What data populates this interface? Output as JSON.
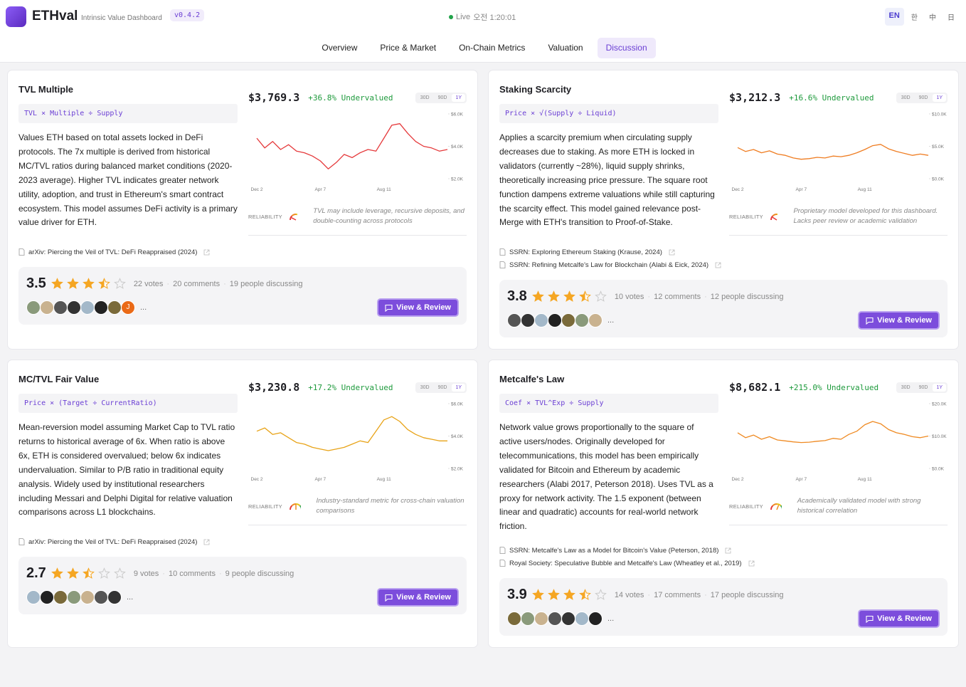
{
  "header": {
    "brand": "ETHval",
    "tagline": "Intrinsic Value Dashboard",
    "version": "v0.4.2",
    "status": "Live",
    "time": "오전 1:20:01",
    "languages": [
      "EN",
      "한",
      "中",
      "日"
    ],
    "active_language": 0
  },
  "nav": {
    "tabs": [
      "Overview",
      "Price & Market",
      "On-Chain Metrics",
      "Valuation",
      "Discussion"
    ],
    "active_tab": 4
  },
  "labels": {
    "reliability": "RELIABILITY",
    "review_button": "View & Review",
    "more": "..."
  },
  "cards": [
    {
      "title": "TVL Multiple",
      "formula": "TVL × Multiple ÷ Supply",
      "price": "$3,769.3",
      "upside": "+36.8%",
      "verdict": "Undervalued",
      "ranges": [
        "30D",
        "90D",
        "1Y"
      ],
      "active_range": 2,
      "description": "Values ETH based on total assets locked in DeFi protocols. The 7x multiple is derived from historical MC/TVL ratios during balanced market conditions (2020-2023 average). Higher TVL indicates greater network utility, adoption, and trust in Ethereum's smart contract ecosystem. This model assumes DeFi activity is a primary value driver for ETH.",
      "chart": {
        "type": "line",
        "color": "#e5393b",
        "values": [
          4500,
          3900,
          4300,
          3800,
          4100,
          3700,
          3600,
          3400,
          3100,
          2600,
          3000,
          3500,
          3300,
          3600,
          3800,
          3700,
          4500,
          5300,
          5400,
          4800,
          4300,
          4000,
          3900,
          3700,
          3800
        ],
        "categories": [
          "Dec 2",
          null,
          null,
          null,
          null,
          null,
          null,
          null,
          "Apr 7",
          null,
          null,
          null,
          null,
          null,
          null,
          null,
          "Aug 11",
          null,
          null,
          null,
          null,
          null,
          null,
          null,
          null
        ],
        "ylim": [
          2000,
          6000
        ],
        "yticks": [
          {
            "value": 6000,
            "label": "$6.0K"
          },
          {
            "value": 4000,
            "label": "$4.0K"
          },
          {
            "value": 2000,
            "label": "$2.0K"
          }
        ]
      },
      "reliability_score": 15,
      "reliability_note": "TVL may include leverage, recursive deposits, and double-counting across protocols",
      "references": [
        "arXiv: Piercing the Veil of TVL: DeFi Reappraised (2024)"
      ],
      "rating": 3.5,
      "votes": "22 votes",
      "comments": "20 comments",
      "discussing": "19 people discussing",
      "avatar_letter": "J"
    },
    {
      "title": "Staking Scarcity",
      "formula": "Price × √(Supply ÷ Liquid)",
      "price": "$3,212.3",
      "upside": "+16.6%",
      "verdict": "Undervalued",
      "ranges": [
        "30D",
        "90D",
        "1Y"
      ],
      "active_range": 2,
      "description": "Applies a scarcity premium when circulating supply decreases due to staking. As more ETH is locked in validators (currently ~28%), liquid supply shrinks, theoretically increasing price pressure. The square root function dampens extreme valuations while still capturing the scarcity effect. This model gained relevance post-Merge with ETH's transition to Proof-of-Stake.",
      "chart": {
        "type": "line",
        "color": "#ef7d22",
        "values": [
          4800,
          4200,
          4500,
          4000,
          4300,
          3800,
          3600,
          3200,
          3000,
          3100,
          3300,
          3200,
          3500,
          3400,
          3600,
          4000,
          4500,
          5100,
          5300,
          4600,
          4200,
          3900,
          3600,
          3800,
          3600
        ],
        "categories": [
          "Dec 2",
          null,
          null,
          null,
          null,
          null,
          null,
          null,
          "Apr 7",
          null,
          null,
          null,
          null,
          null,
          null,
          null,
          "Aug 11",
          null,
          null,
          null,
          null,
          null,
          null,
          null,
          null
        ],
        "ylim": [
          0,
          10000
        ],
        "yticks": [
          {
            "value": 10000,
            "label": "$10.0K"
          },
          {
            "value": 5000,
            "label": "$5.0K"
          },
          {
            "value": 0,
            "label": "$0.0K"
          }
        ]
      },
      "reliability_score": 18,
      "reliability_note": "Proprietary model developed for this dashboard. Lacks peer review or academic validation",
      "references": [
        "SSRN: Exploring Ethereum Staking (Krause, 2024)",
        "SSRN: Refining Metcalfe's Law for Blockchain (Alabi & Eick, 2024)"
      ],
      "rating": 3.8,
      "votes": "10 votes",
      "comments": "12 comments",
      "discussing": "12 people discussing"
    },
    {
      "title": "MC/TVL Fair Value",
      "formula": "Price × (Target ÷ CurrentRatio)",
      "price": "$3,230.8",
      "upside": "+17.2%",
      "verdict": "Undervalued",
      "ranges": [
        "30D",
        "90D",
        "1Y"
      ],
      "active_range": 2,
      "description": "Mean-reversion model assuming Market Cap to TVL ratio returns to historical average of 6x. When ratio is above 6x, ETH is considered overvalued; below 6x indicates undervaluation. Similar to P/B ratio in traditional equity analysis. Widely used by institutional researchers including Messari and Delphi Digital for relative valuation comparisons across L1 blockchains.",
      "chart": {
        "type": "line",
        "color": "#e8a317",
        "values": [
          4300,
          4500,
          4100,
          4200,
          3900,
          3600,
          3500,
          3300,
          3200,
          3100,
          3200,
          3300,
          3500,
          3700,
          3600,
          4300,
          5000,
          5200,
          4900,
          4400,
          4100,
          3900,
          3800,
          3700,
          3700
        ],
        "categories": [
          "Dec 2",
          null,
          null,
          null,
          null,
          null,
          null,
          null,
          "Apr 7",
          null,
          null,
          null,
          null,
          null,
          null,
          null,
          "Aug 11",
          null,
          null,
          null,
          null,
          null,
          null,
          null,
          null
        ],
        "ylim": [
          2000,
          6000
        ],
        "yticks": [
          {
            "value": 6000,
            "label": "$6.0K"
          },
          {
            "value": 4000,
            "label": "$4.0K"
          },
          {
            "value": 2000,
            "label": "$2.0K"
          }
        ]
      },
      "reliability_score": 50,
      "reliability_note": "Industry-standard metric for cross-chain valuation comparisons",
      "references": [
        "arXiv: Piercing the Veil of TVL: DeFi Reappraised (2024)"
      ],
      "rating": 2.7,
      "votes": "9 votes",
      "comments": "10 comments",
      "discussing": "9 people discussing"
    },
    {
      "title": "Metcalfe's Law",
      "formula": "Coef × TVL^Exp ÷ Supply",
      "price": "$8,682.1",
      "upside": "+215.0%",
      "verdict": "Undervalued",
      "ranges": [
        "30D",
        "90D",
        "1Y"
      ],
      "active_range": 2,
      "description": "Network value grows proportionally to the square of active users/nodes. Originally developed for telecommunications, this model has been empirically validated for Bitcoin and Ethereum by academic researchers (Alabi 2017, Peterson 2018). Uses TVL as a proxy for network activity. The 1.5 exponent (between linear and quadratic) accounts for real-world network friction.",
      "chart": {
        "type": "line",
        "color": "#ef8a22",
        "values": [
          11000,
          9500,
          10300,
          9000,
          9800,
          8800,
          8500,
          8200,
          8000,
          8100,
          8400,
          8600,
          9300,
          9000,
          10500,
          11500,
          13500,
          14500,
          13800,
          12000,
          11000,
          10500,
          9800,
          9500,
          10000
        ],
        "categories": [
          "Dec 2",
          null,
          null,
          null,
          null,
          null,
          null,
          null,
          "Apr 7",
          null,
          null,
          null,
          null,
          null,
          null,
          null,
          "Aug 11",
          null,
          null,
          null,
          null,
          null,
          null,
          null,
          null
        ],
        "ylim": [
          0,
          20000
        ],
        "yticks": [
          {
            "value": 20000,
            "label": "$20.0K"
          },
          {
            "value": 10000,
            "label": "$10.0K"
          },
          {
            "value": 0,
            "label": "$0.0K"
          }
        ]
      },
      "reliability_score": 62,
      "reliability_note": "Academically validated model with strong historical correlation",
      "references": [
        "SSRN: Metcalfe's Law as a Model for Bitcoin's Value (Peterson, 2018)",
        "Royal Society: Speculative Bubble and Metcalfe's Law (Wheatley et al., 2019)"
      ],
      "rating": 3.9,
      "votes": "14 votes",
      "comments": "17 comments",
      "discussing": "17 people discussing"
    }
  ]
}
